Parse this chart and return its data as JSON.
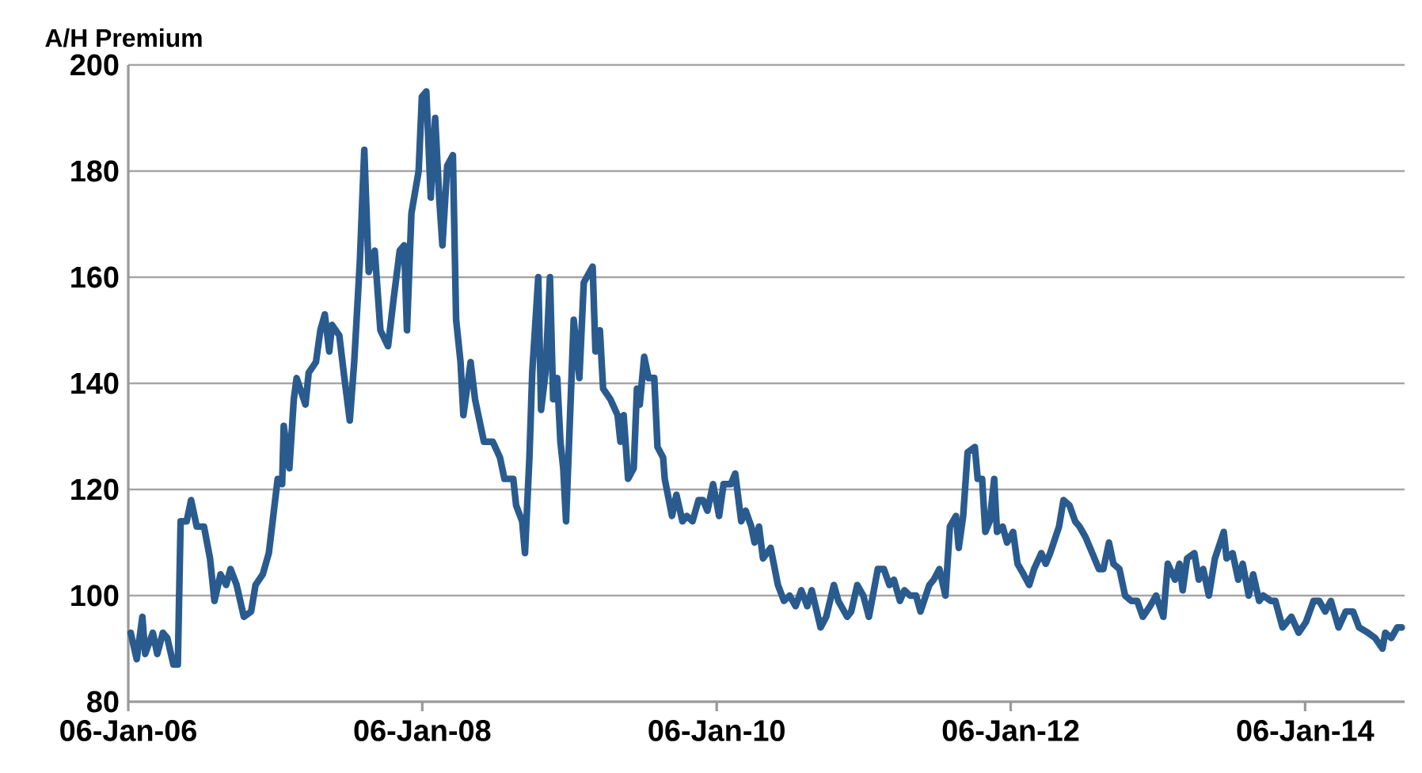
{
  "chart_data": {
    "type": "line",
    "ylabel": "A/H Premium",
    "xlim": [
      "2006-01-06",
      "2014-09-10"
    ],
    "ylim": [
      80,
      200
    ],
    "xticks": [
      {
        "value": "2006-01-06",
        "label": "06-Jan-06"
      },
      {
        "value": "2008-01-06",
        "label": "06-Jan-08"
      },
      {
        "value": "2010-01-06",
        "label": "06-Jan-10"
      },
      {
        "value": "2012-01-06",
        "label": "06-Jan-12"
      },
      {
        "value": "2014-01-06",
        "label": "06-Jan-14"
      }
    ],
    "yticks": [
      80,
      100,
      120,
      140,
      160,
      180,
      200
    ],
    "grid": "y",
    "series": [
      {
        "color": "#2a5b8f",
        "x": [
          "2006-01-12",
          "2006-01-27",
          "2006-02-10",
          "2006-02-17",
          "2006-03-08",
          "2006-03-19",
          "2006-04-02",
          "2006-04-13",
          "2006-04-28",
          "2006-05-09",
          "2006-05-16",
          "2006-05-31",
          "2006-06-11",
          "2006-06-25",
          "2006-07-13",
          "2006-07-28",
          "2006-08-08",
          "2006-08-23",
          "2006-09-06",
          "2006-09-17",
          "2006-10-02",
          "2006-10-20",
          "2006-11-07",
          "2006-11-18",
          "2006-12-06",
          "2006-12-21",
          "2007-01-01",
          "2007-01-12",
          "2007-01-23",
          "2007-01-27",
          "2007-02-10",
          "2007-02-21",
          "2007-02-28",
          "2007-03-22",
          "2007-03-30",
          "2007-04-17",
          "2007-04-28",
          "2007-05-09",
          "2007-05-20",
          "2007-05-27",
          "2007-06-14",
          "2007-06-25",
          "2007-07-10",
          "2007-07-21",
          "2007-08-04",
          "2007-08-15",
          "2007-08-26",
          "2007-09-10",
          "2007-09-24",
          "2007-10-13",
          "2007-10-27",
          "2007-11-11",
          "2007-11-22",
          "2007-11-29",
          "2007-12-10",
          "2007-12-28",
          "2008-01-05",
          "2008-01-16",
          "2008-01-27",
          "2008-02-07",
          "2008-02-17",
          "2008-02-25",
          "2008-03-08",
          "2008-03-22",
          "2008-03-30",
          "2008-04-10",
          "2008-04-17",
          "2008-05-05",
          "2008-05-16",
          "2008-06-07",
          "2008-06-29",
          "2008-07-17",
          "2008-07-28",
          "2008-08-19",
          "2008-08-26",
          "2008-09-10",
          "2008-09-17",
          "2008-09-28",
          "2008-10-05",
          "2008-10-20",
          "2008-10-27",
          "2008-11-07",
          "2008-11-18",
          "2008-11-26",
          "2008-12-06",
          "2008-12-14",
          "2008-12-21",
          "2008-12-28",
          "2009-01-16",
          "2009-01-30",
          "2009-02-10",
          "2009-03-04",
          "2009-03-11",
          "2009-03-22",
          "2009-03-30",
          "2009-04-17",
          "2009-05-05",
          "2009-05-12",
          "2009-05-20",
          "2009-05-31",
          "2009-06-14",
          "2009-06-22",
          "2009-06-29",
          "2009-07-10",
          "2009-07-21",
          "2009-08-04",
          "2009-08-12",
          "2009-08-26",
          "2009-08-30",
          "2009-09-17",
          "2009-09-28",
          "2009-10-13",
          "2009-10-24",
          "2009-11-07",
          "2009-11-22",
          "2009-12-03",
          "2009-12-14",
          "2009-12-28",
          "2010-01-12",
          "2010-01-23",
          "2010-02-10",
          "2010-02-21",
          "2010-03-08",
          "2010-03-19",
          "2010-04-02",
          "2010-04-10",
          "2010-04-21",
          "2010-05-01",
          "2010-05-20",
          "2010-06-07",
          "2010-06-22",
          "2010-07-06",
          "2010-07-21",
          "2010-08-04",
          "2010-08-19",
          "2010-08-30",
          "2010-09-21",
          "2010-10-05",
          "2010-10-24",
          "2010-11-04",
          "2010-11-26",
          "2010-12-06",
          "2010-12-21",
          "2011-01-05",
          "2011-01-19",
          "2011-02-10",
          "2011-02-25",
          "2011-03-11",
          "2011-03-22",
          "2011-04-06",
          "2011-04-17",
          "2011-05-01",
          "2011-05-16",
          "2011-05-27",
          "2011-06-18",
          "2011-06-29",
          "2011-07-13",
          "2011-07-28",
          "2011-08-08",
          "2011-08-23",
          "2011-08-30",
          "2011-09-10",
          "2011-09-21",
          "2011-10-09",
          "2011-10-16",
          "2011-10-27",
          "2011-11-04",
          "2011-11-15",
          "2011-11-26",
          "2011-12-03",
          "2011-12-17",
          "2011-12-28",
          "2012-01-12",
          "2012-01-23",
          "2012-02-07",
          "2012-02-21",
          "2012-03-04",
          "2012-03-22",
          "2012-04-02",
          "2012-04-13",
          "2012-05-05",
          "2012-05-16",
          "2012-05-31",
          "2012-06-14",
          "2012-06-25",
          "2012-07-10",
          "2012-07-21",
          "2012-08-12",
          "2012-08-23",
          "2012-09-06",
          "2012-09-17",
          "2012-10-02",
          "2012-10-16",
          "2012-10-31",
          "2012-11-15",
          "2012-11-29",
          "2012-12-17",
          "2013-01-01",
          "2013-01-19",
          "2013-01-30",
          "2013-02-17",
          "2013-02-28",
          "2013-03-08",
          "2013-03-19",
          "2013-04-06",
          "2013-04-17",
          "2013-04-28",
          "2013-05-12",
          "2013-05-27",
          "2013-06-18",
          "2013-06-25",
          "2013-07-10",
          "2013-07-24",
          "2013-08-04",
          "2013-08-19",
          "2013-08-30",
          "2013-09-14",
          "2013-09-24",
          "2013-10-13",
          "2013-10-24",
          "2013-11-11",
          "2013-12-03",
          "2013-12-21",
          "2014-01-08",
          "2014-01-27",
          "2014-02-10",
          "2014-02-25",
          "2014-03-11",
          "2014-03-30",
          "2014-04-17",
          "2014-05-05",
          "2014-05-20",
          "2014-06-11",
          "2014-06-29",
          "2014-07-17",
          "2014-07-24",
          "2014-08-08",
          "2014-08-23",
          "2014-09-03"
        ],
        "values": [
          93,
          88,
          96,
          89,
          93,
          89,
          93,
          92,
          87,
          87,
          114,
          114,
          118,
          113,
          113,
          107,
          99,
          104,
          102,
          105,
          102,
          96,
          97,
          102,
          104,
          108,
          115,
          122,
          121,
          132,
          124,
          137,
          141,
          136,
          142,
          144,
          150,
          153,
          146,
          151,
          149,
          142,
          133,
          144,
          163,
          184,
          161,
          165,
          150,
          147,
          156,
          165,
          166,
          150,
          172,
          180,
          194,
          195,
          175,
          190,
          175,
          166,
          181,
          183,
          152,
          144,
          134,
          144,
          137,
          129,
          129,
          126,
          122,
          122,
          117,
          114,
          108,
          126,
          142,
          160,
          135,
          142,
          160,
          137,
          141,
          129,
          124,
          114,
          152,
          141,
          159,
          162,
          146,
          150,
          139,
          137,
          134,
          129,
          134,
          122,
          124,
          139,
          136,
          145,
          141,
          141,
          128,
          126,
          122,
          115,
          119,
          114,
          115,
          114,
          118,
          118,
          116,
          121,
          115,
          121,
          121,
          123,
          114,
          116,
          113,
          110,
          113,
          107,
          109,
          102,
          99,
          100,
          98,
          101,
          98,
          101,
          94,
          96,
          102,
          99,
          96,
          97,
          102,
          100,
          96,
          105,
          105,
          102,
          103,
          99,
          101,
          100,
          100,
          97,
          102,
          103,
          105,
          100,
          113,
          115,
          109,
          115,
          127,
          128,
          122,
          122,
          112,
          114,
          122,
          112,
          113,
          110,
          112,
          106,
          104,
          102,
          105,
          108,
          106,
          108,
          113,
          118,
          117,
          114,
          113,
          111,
          109,
          105,
          105,
          110,
          106,
          105,
          100,
          99,
          99,
          96,
          98,
          100,
          96,
          106,
          103,
          106,
          101,
          107,
          108,
          103,
          105,
          100,
          107,
          112,
          107,
          108,
          103,
          106,
          100,
          104,
          99,
          100,
          99,
          99,
          94,
          96,
          93,
          95,
          99,
          99,
          97,
          99,
          94,
          97,
          97,
          94,
          93,
          92,
          90,
          93,
          92,
          94,
          94
        ]
      }
    ]
  }
}
